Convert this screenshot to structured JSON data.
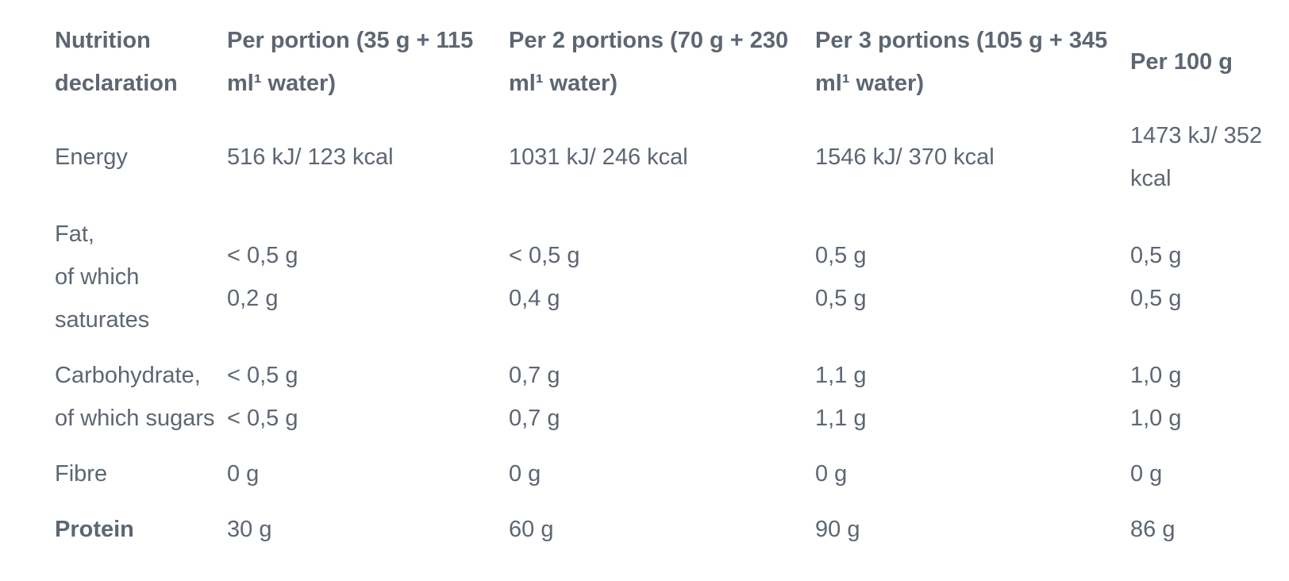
{
  "table": {
    "header": [
      "Nutrition declaration",
      "Per portion (35 g + 115 ml¹ water)",
      "Per 2 portions (70 g + 230 ml¹ water)",
      "Per 3 portions (105 g + 345 ml¹ water)",
      "Per 100 g"
    ],
    "rows": [
      {
        "label": [
          "Energy"
        ],
        "values": [
          [
            "516 kJ/ 123 kcal"
          ],
          [
            "1031 kJ/ 246 kcal"
          ],
          [
            "1546 kJ/ 370 kcal"
          ],
          [
            "1473 kJ/ 352 kcal"
          ]
        ]
      },
      {
        "label": [
          "Fat,",
          "of which saturates"
        ],
        "values": [
          [
            "< 0,5 g",
            "0,2 g"
          ],
          [
            "< 0,5 g",
            "0,4 g"
          ],
          [
            "0,5 g",
            "0,5 g"
          ],
          [
            "0,5 g",
            "0,5 g"
          ]
        ]
      },
      {
        "label": [
          "Carbohydrate,",
          "of which sugars"
        ],
        "values": [
          [
            "< 0,5 g",
            "< 0,5 g"
          ],
          [
            "0,7 g",
            "0,7 g"
          ],
          [
            "1,1 g",
            "1,1 g"
          ],
          [
            "1,0 g",
            "1,0 g"
          ]
        ]
      },
      {
        "label": [
          "Fibre"
        ],
        "values": [
          [
            "0 g"
          ],
          [
            "0 g"
          ],
          [
            "0 g"
          ],
          [
            "0 g"
          ]
        ]
      },
      {
        "label": [
          "Protein"
        ],
        "values": [
          [
            "30 g"
          ],
          [
            "60 g"
          ],
          [
            "90 g"
          ],
          [
            "86 g"
          ]
        ]
      }
    ]
  }
}
